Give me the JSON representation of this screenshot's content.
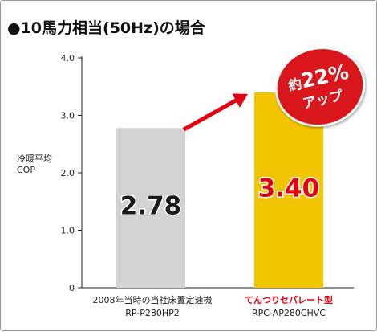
{
  "header": {
    "title": "●10馬力相当(50Hz)の場合"
  },
  "badge": {
    "line1_prefix": "約",
    "line1_value": "22%",
    "line2": "アップ"
  },
  "colors": {
    "bar_old": "#d3d3d3",
    "bar_new": "#f2c500",
    "value_new_text": "#e60012",
    "arrow": "#e60012",
    "badge_fill": "#d9141c",
    "new_product_label": "#e60012",
    "axis": "#222222"
  },
  "chart_data": {
    "type": "bar",
    "ylabel": [
      "冷暖平均",
      "COP"
    ],
    "ylim": [
      0,
      4.0
    ],
    "yticks": [
      "0",
      "1.0",
      "2.0",
      "3.0",
      "4.0"
    ],
    "ytick_values": [
      0,
      1,
      2,
      3,
      4
    ],
    "categories": [
      [
        "2008年当時の当社床置定速機",
        "RP-P280HP2"
      ],
      [
        "てんつりセパレート型",
        "RPC-AP280CHVC"
      ]
    ],
    "values": [
      2.78,
      3.4
    ],
    "value_labels": [
      "2.78",
      "3.40"
    ]
  }
}
